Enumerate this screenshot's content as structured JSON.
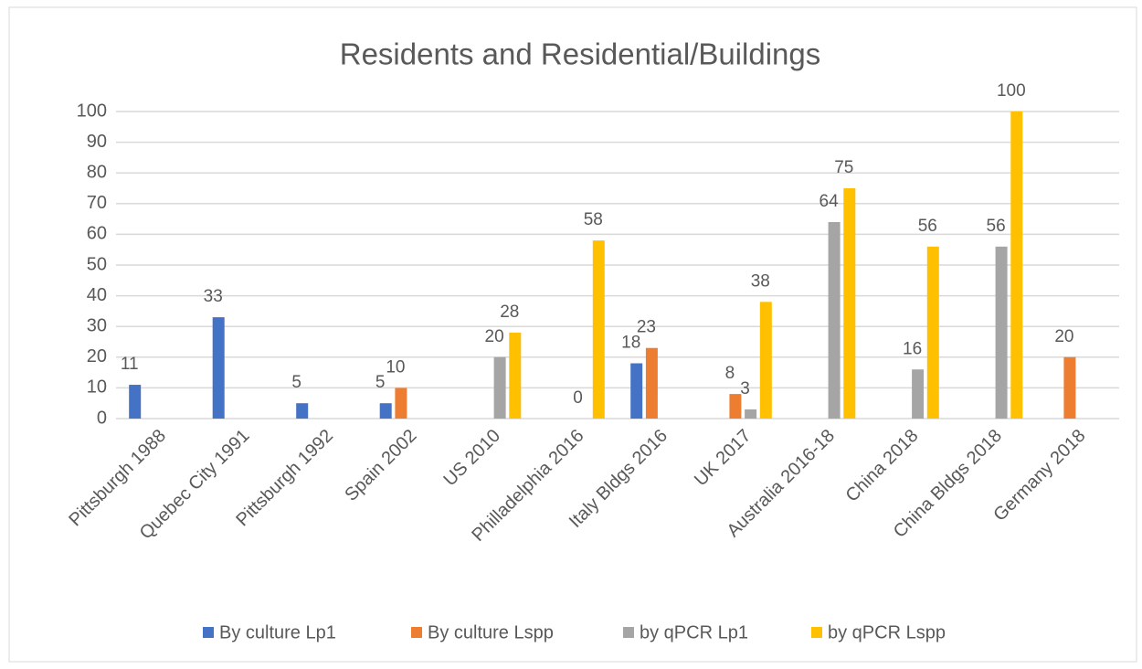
{
  "chart_data": {
    "type": "bar",
    "title": "Residents and Residential/Buildings",
    "categories": [
      "Pittsburgh 1988",
      "Quebec City 1991",
      "Pittsburgh 1992",
      "Spain 2002",
      "US 2010",
      "Philladelphia 2016",
      "Italy Bldgs 2016",
      "UK 2017",
      "Australia 2016-18",
      "China 2018",
      "China Bldgs 2018",
      "Germany 2018"
    ],
    "series": [
      {
        "name": "By culture Lp1",
        "color": "#4472c4",
        "values": [
          11,
          33,
          5,
          5,
          null,
          null,
          18,
          null,
          null,
          null,
          null,
          null
        ]
      },
      {
        "name": "By culture Lspp",
        "color": "#ed7d31",
        "values": [
          null,
          null,
          null,
          10,
          null,
          null,
          23,
          8,
          null,
          null,
          null,
          20
        ]
      },
      {
        "name": "by qPCR Lp1",
        "color": "#a5a5a5",
        "values": [
          null,
          null,
          null,
          null,
          20,
          0,
          null,
          3,
          64,
          16,
          56,
          null
        ]
      },
      {
        "name": "by qPCR Lspp",
        "color": "#ffc000",
        "values": [
          null,
          null,
          null,
          null,
          28,
          58,
          null,
          38,
          75,
          56,
          100,
          null
        ]
      }
    ],
    "ylim": [
      0,
      100
    ],
    "yticks": [
      0,
      10,
      20,
      30,
      40,
      50,
      60,
      70,
      80,
      90,
      100
    ],
    "grid": true,
    "legend": "bottom"
  }
}
